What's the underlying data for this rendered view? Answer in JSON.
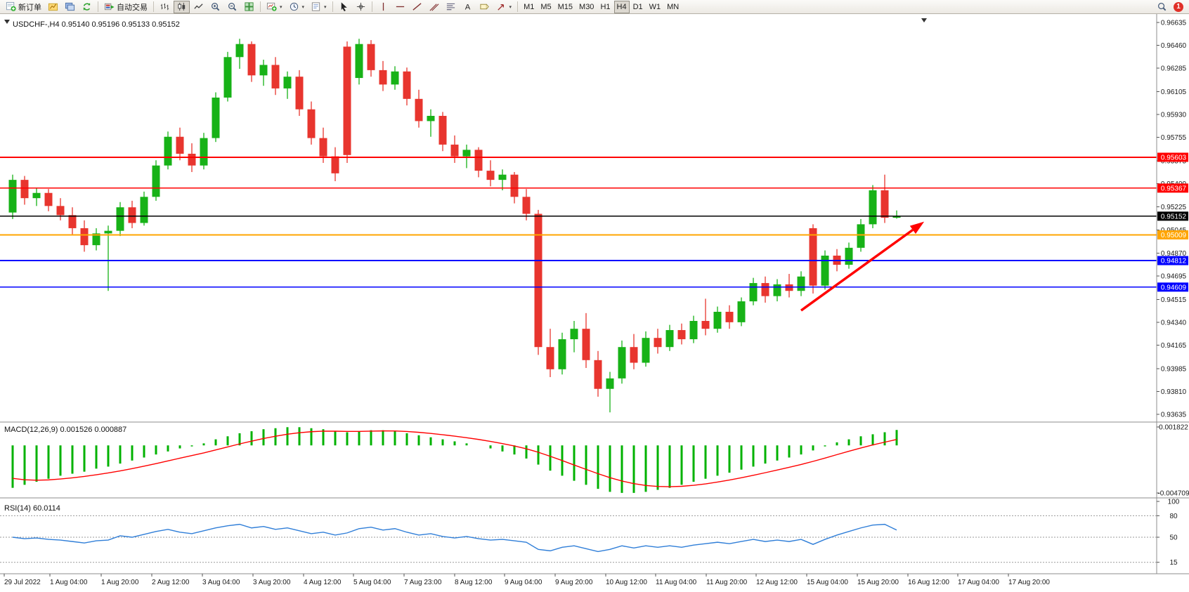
{
  "toolbar": {
    "new_order": "新订单",
    "auto_trading": "自动交易",
    "timeframes": [
      "M1",
      "M5",
      "M15",
      "M30",
      "H1",
      "H4",
      "D1",
      "W1",
      "MN"
    ],
    "active_timeframe": "H4",
    "notification_count": "1"
  },
  "chart": {
    "symbol_period": "USDCHF-,H4",
    "quote": "0.95140 0.95196 0.95133 0.95152"
  },
  "price_axis": {
    "ticks": [
      "0.96635",
      "0.96460",
      "0.96285",
      "0.96105",
      "0.95930",
      "0.95755",
      "0.95575",
      "0.95400",
      "0.95225",
      "0.95045",
      "0.94870",
      "0.94695",
      "0.94515",
      "0.94340",
      "0.94165",
      "0.93985",
      "0.93810",
      "0.93635"
    ]
  },
  "colors": {
    "bull": "#17b217",
    "bear": "#e8352e",
    "macd_histogram": "#00b200",
    "macd_signal": "#ff0000",
    "rsi_line": "#2f7ed8",
    "level_dotted": "#9a9a9a",
    "axis_text": "#1a1a1a",
    "arrow": "#ff0000"
  },
  "chart_data": {
    "type": "candlestick",
    "symbol": "USDCHF-",
    "timeframe": "H4",
    "scale": {
      "price_max": 0.96635,
      "price_min": 0.93635
    },
    "candles": [
      [
        0.9518,
        0.9547,
        0.9513,
        0.9543
      ],
      [
        0.9543,
        0.9546,
        0.9524,
        0.9529
      ],
      [
        0.9529,
        0.9537,
        0.9523,
        0.9533
      ],
      [
        0.9533,
        0.9536,
        0.9519,
        0.9523
      ],
      [
        0.9523,
        0.9529,
        0.9512,
        0.9516
      ],
      [
        0.9516,
        0.9522,
        0.9501,
        0.9506
      ],
      [
        0.9506,
        0.9512,
        0.9488,
        0.9493
      ],
      [
        0.9493,
        0.9506,
        0.9489,
        0.9502
      ],
      [
        0.9502,
        0.9508,
        0.9458,
        0.9504
      ],
      [
        0.9504,
        0.9526,
        0.95,
        0.9522
      ],
      [
        0.9522,
        0.9527,
        0.9506,
        0.951
      ],
      [
        0.951,
        0.9534,
        0.9508,
        0.953
      ],
      [
        0.953,
        0.9558,
        0.9527,
        0.9554
      ],
      [
        0.9554,
        0.958,
        0.9551,
        0.9576
      ],
      [
        0.9576,
        0.9583,
        0.9558,
        0.9563
      ],
      [
        0.9563,
        0.9571,
        0.9549,
        0.9554
      ],
      [
        0.9554,
        0.9579,
        0.9551,
        0.9575
      ],
      [
        0.9575,
        0.961,
        0.9572,
        0.9606
      ],
      [
        0.9606,
        0.9641,
        0.9603,
        0.9637
      ],
      [
        0.9637,
        0.9651,
        0.9628,
        0.9647
      ],
      [
        0.9647,
        0.9649,
        0.9618,
        0.9623
      ],
      [
        0.9623,
        0.9635,
        0.9615,
        0.9631
      ],
      [
        0.9631,
        0.9637,
        0.9608,
        0.9613
      ],
      [
        0.9613,
        0.9626,
        0.9605,
        0.9622
      ],
      [
        0.9622,
        0.9627,
        0.9592,
        0.9597
      ],
      [
        0.9597,
        0.9603,
        0.957,
        0.9575
      ],
      [
        0.9575,
        0.9583,
        0.9556,
        0.9561
      ],
      [
        0.9561,
        0.9568,
        0.9542,
        0.9548
      ],
      [
        0.9645,
        0.9649,
        0.9556,
        0.9562
      ],
      [
        0.9621,
        0.9651,
        0.9616,
        0.9647
      ],
      [
        0.9647,
        0.965,
        0.9622,
        0.9627
      ],
      [
        0.9627,
        0.9634,
        0.9611,
        0.9616
      ],
      [
        0.9616,
        0.963,
        0.9612,
        0.9626
      ],
      [
        0.9626,
        0.9629,
        0.96,
        0.9605
      ],
      [
        0.9605,
        0.9612,
        0.9583,
        0.9588
      ],
      [
        0.9588,
        0.9597,
        0.9576,
        0.9592
      ],
      [
        0.9592,
        0.9595,
        0.9565,
        0.957
      ],
      [
        0.957,
        0.9577,
        0.9556,
        0.9561
      ],
      [
        0.9561,
        0.957,
        0.9552,
        0.9566
      ],
      [
        0.9566,
        0.9568,
        0.9545,
        0.955
      ],
      [
        0.955,
        0.9558,
        0.9538,
        0.9543
      ],
      [
        0.9543,
        0.9551,
        0.9535,
        0.9547
      ],
      [
        0.9547,
        0.9549,
        0.9525,
        0.953
      ],
      [
        0.953,
        0.9536,
        0.9512,
        0.9517
      ],
      [
        0.9517,
        0.952,
        0.9409,
        0.9415
      ],
      [
        0.9415,
        0.9429,
        0.9392,
        0.9398
      ],
      [
        0.9398,
        0.9426,
        0.9394,
        0.9421
      ],
      [
        0.9421,
        0.9435,
        0.9411,
        0.9429
      ],
      [
        0.9429,
        0.9441,
        0.9399,
        0.9405
      ],
      [
        0.9405,
        0.9412,
        0.9377,
        0.9383
      ],
      [
        0.9383,
        0.9396,
        0.9365,
        0.9391
      ],
      [
        0.9391,
        0.942,
        0.9387,
        0.9415
      ],
      [
        0.9415,
        0.9425,
        0.9398,
        0.9403
      ],
      [
        0.9403,
        0.9427,
        0.94,
        0.9422
      ],
      [
        0.9422,
        0.9429,
        0.941,
        0.9415
      ],
      [
        0.9415,
        0.9432,
        0.9412,
        0.9428
      ],
      [
        0.9428,
        0.9433,
        0.9417,
        0.9421
      ],
      [
        0.9421,
        0.9439,
        0.9418,
        0.9435
      ],
      [
        0.9435,
        0.9452,
        0.9424,
        0.9429
      ],
      [
        0.9429,
        0.9446,
        0.9426,
        0.9442
      ],
      [
        0.9442,
        0.9447,
        0.9429,
        0.9434
      ],
      [
        0.9434,
        0.9453,
        0.9431,
        0.945
      ],
      [
        0.945,
        0.9468,
        0.9447,
        0.9464
      ],
      [
        0.9464,
        0.9469,
        0.9449,
        0.9454
      ],
      [
        0.9454,
        0.9467,
        0.945,
        0.9463
      ],
      [
        0.9463,
        0.9471,
        0.9453,
        0.9458
      ],
      [
        0.9458,
        0.9473,
        0.9454,
        0.9469
      ],
      [
        0.9506,
        0.9509,
        0.9456,
        0.9462
      ],
      [
        0.9462,
        0.9489,
        0.9459,
        0.9485
      ],
      [
        0.9485,
        0.949,
        0.9473,
        0.9478
      ],
      [
        0.9478,
        0.9495,
        0.9475,
        0.9491
      ],
      [
        0.9491,
        0.9513,
        0.9488,
        0.9509
      ],
      [
        0.9509,
        0.9539,
        0.9506,
        0.9535
      ],
      [
        0.9535,
        0.9547,
        0.951,
        0.9514
      ],
      [
        0.9514,
        0.95196,
        0.95133,
        0.95152
      ]
    ],
    "hlines": [
      {
        "price": 0.95603,
        "color": "#ff0000",
        "label": "0.95603"
      },
      {
        "price": 0.95367,
        "color": "#ff0000",
        "label": "0.95367"
      },
      {
        "price": 0.95152,
        "color": "#000000",
        "label": "0.95152"
      },
      {
        "price": 0.95009,
        "color": "#ffa500",
        "label": "0.95009"
      },
      {
        "price": 0.94812,
        "color": "#0000ff",
        "label": "0.94812"
      },
      {
        "price": 0.94609,
        "color": "#0000ff",
        "label": "0.94609"
      }
    ],
    "trend_arrow": {
      "from_bar": 66,
      "from_price": 0.9443,
      "to_bar": 76.3,
      "to_price": 0.9511,
      "color": "#ff0000"
    },
    "macd": {
      "title": "MACD(12,26,9)",
      "value": "0.001526",
      "signal_value": "0.000887",
      "axis_max": "0.001822",
      "axis_min": "-0.004709",
      "scale_max": 0.001822,
      "scale_min": -0.004709,
      "signal_seed": -0.003,
      "histogram": [
        -0.0042,
        -0.0039,
        -0.0036,
        -0.0033,
        -0.003,
        -0.0028,
        -0.0026,
        -0.0023,
        -0.0021,
        -0.0018,
        -0.0015,
        -0.0012,
        -0.0009,
        -0.0006,
        -0.0003,
        -0.0001,
        0.0002,
        0.0006,
        0.0009,
        0.0012,
        0.0014,
        0.0016,
        0.0017,
        0.0018,
        0.0018,
        0.0017,
        0.0016,
        0.0014,
        0.0013,
        0.0014,
        0.0015,
        0.0015,
        0.0014,
        0.0012,
        0.001,
        0.0008,
        0.0006,
        0.0004,
        0.0002,
        0.0,
        -0.0003,
        -0.0006,
        -0.0009,
        -0.0013,
        -0.0019,
        -0.0025,
        -0.003,
        -0.0035,
        -0.0039,
        -0.0043,
        -0.0046,
        -0.0047,
        -0.0047,
        -0.0046,
        -0.0044,
        -0.0042,
        -0.0039,
        -0.0036,
        -0.0033,
        -0.003,
        -0.0027,
        -0.0024,
        -0.0021,
        -0.0018,
        -0.0015,
        -0.0012,
        -0.0009,
        -0.0005,
        -0.0001,
        0.0003,
        0.0006,
        0.0009,
        0.0011,
        0.0013,
        0.001526
      ]
    },
    "rsi": {
      "title": "RSI(14)",
      "value": "60.0114",
      "levels": [
        80,
        50,
        15
      ],
      "axis_labels": [
        "100",
        "80",
        "50",
        "15"
      ],
      "values": [
        50,
        48,
        49,
        47,
        46,
        44,
        42,
        45,
        46,
        52,
        50,
        54,
        58,
        61,
        57,
        55,
        59,
        63,
        66,
        68,
        63,
        65,
        61,
        63,
        59,
        55,
        57,
        53,
        56,
        62,
        64,
        60,
        62,
        57,
        53,
        55,
        51,
        49,
        51,
        48,
        46,
        47,
        45,
        43,
        33,
        31,
        36,
        38,
        34,
        30,
        33,
        38,
        35,
        38,
        36,
        38,
        36,
        39,
        41,
        43,
        41,
        44,
        47,
        44,
        46,
        44,
        47,
        40,
        47,
        53,
        58,
        63,
        67,
        68,
        60.01
      ]
    },
    "time_labels": [
      [
        "29 Jul 2022",
        6
      ],
      [
        "1 Aug 04:00",
        71
      ],
      [
        "1 Aug 20:00",
        144
      ],
      [
        "2 Aug 12:00",
        216
      ],
      [
        "3 Aug 04:00",
        288
      ],
      [
        "3 Aug 20:00",
        360
      ],
      [
        "4 Aug 12:00",
        432
      ],
      [
        "5 Aug 04:00",
        503
      ],
      [
        "7 Aug 23:00",
        575
      ],
      [
        "8 Aug 12:00",
        647
      ],
      [
        "9 Aug 04:00",
        718
      ],
      [
        "9 Aug 20:00",
        790
      ],
      [
        "10 Aug 12:00",
        862
      ],
      [
        "11 Aug 04:00",
        933
      ],
      [
        "11 Aug 20:00",
        1005
      ],
      [
        "12 Aug 12:00",
        1076
      ],
      [
        "15 Aug 04:00",
        1148
      ],
      [
        "15 Aug 20:00",
        1220
      ],
      [
        "16 Aug 12:00",
        1292
      ],
      [
        "17 Aug 04:00",
        1363
      ],
      [
        "17 Aug 20:00",
        1435
      ]
    ]
  }
}
